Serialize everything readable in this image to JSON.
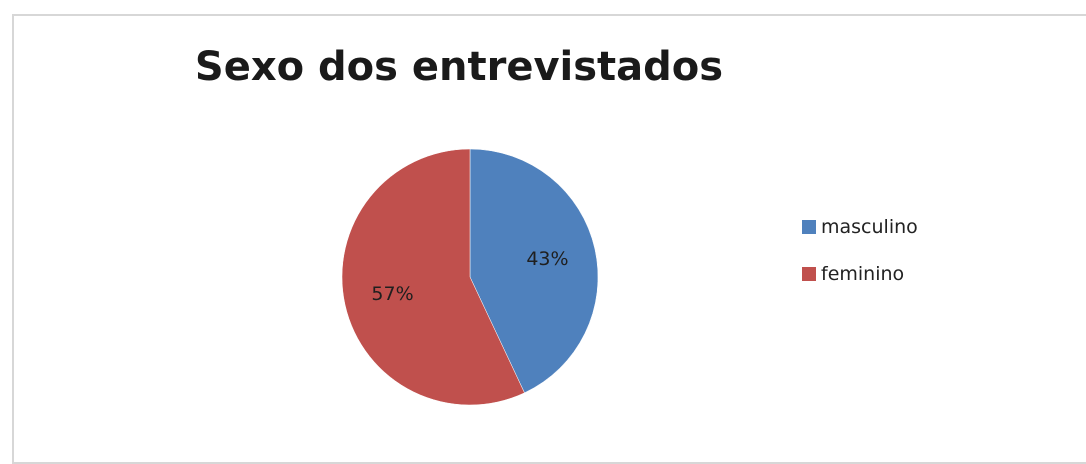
{
  "chart_data": {
    "type": "pie",
    "title": "Sexo dos entrevistados",
    "slices": [
      {
        "name": "masculino",
        "value": 43,
        "label": "43%",
        "color": "#4f81bd"
      },
      {
        "name": "feminino",
        "value": 57,
        "label": "57%",
        "color": "#c0504d"
      }
    ],
    "legend_position": "right"
  }
}
